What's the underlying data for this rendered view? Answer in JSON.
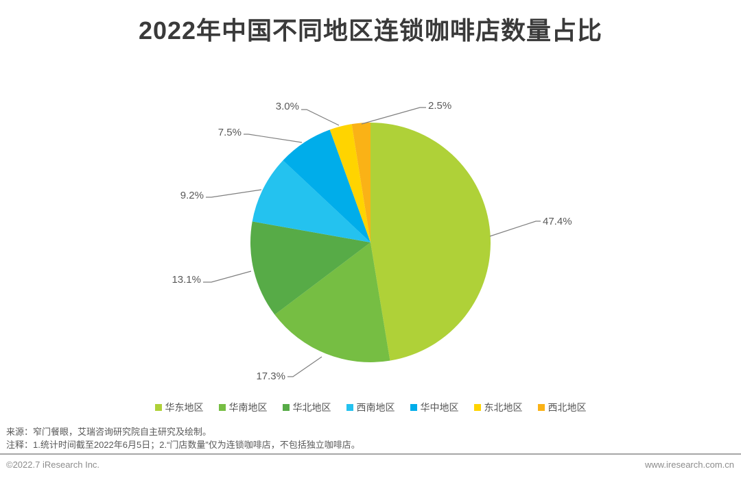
{
  "title": "2022年中国不同地区连锁咖啡店数量占比",
  "chart_data": {
    "type": "pie",
    "title": "2022年中国不同地区连锁咖啡店数量占比",
    "direction": "clockwise",
    "start_angle_deg": 0,
    "categories": [
      "华东地区",
      "华南地区",
      "华北地区",
      "西南地区",
      "华中地区",
      "东北地区",
      "西北地区"
    ],
    "values": [
      47.4,
      17.3,
      13.1,
      9.2,
      7.5,
      3.0,
      2.5
    ],
    "labels": [
      "47.4%",
      "17.3%",
      "13.1%",
      "9.2%",
      "7.5%",
      "3.0%",
      "2.5%"
    ],
    "colors": [
      "#AFD138",
      "#76BE43",
      "#57AB47",
      "#24C2EF",
      "#00ADEA",
      "#FFD400",
      "#FAB216"
    ],
    "legend_position": "bottom"
  },
  "footer": {
    "source": "来源：窄门餐眼，艾瑞咨询研究院自主研究及绘制。",
    "note": "注释：1.统计时间截至2022年6月5日；2.“门店数量”仅为连锁咖啡店，不包括独立咖啡店。",
    "copyright": "©2022.7 iResearch Inc.",
    "website": "www.iresearch.com.cn"
  }
}
